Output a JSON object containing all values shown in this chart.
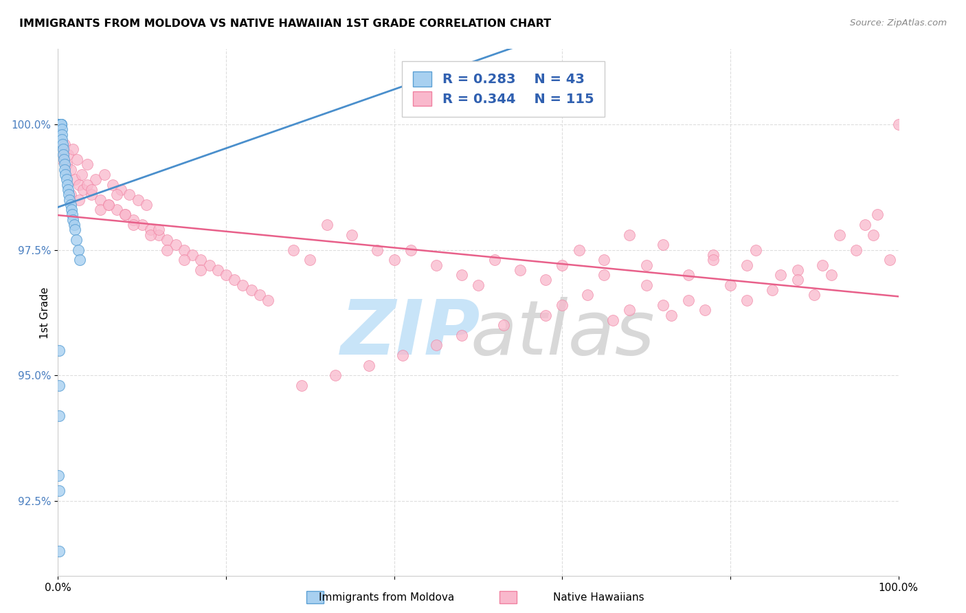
{
  "title": "IMMIGRANTS FROM MOLDOVA VS NATIVE HAWAIIAN 1ST GRADE CORRELATION CHART",
  "source": "Source: ZipAtlas.com",
  "ylabel": "1st Grade",
  "ytick_values": [
    92.5,
    95.0,
    97.5,
    100.0
  ],
  "xlim": [
    0.0,
    100.0
  ],
  "ylim": [
    91.0,
    101.5
  ],
  "legend_blue_label": "Immigrants from Moldova",
  "legend_pink_label": "Native Hawaiians",
  "R_blue": 0.283,
  "N_blue": 43,
  "R_pink": 0.344,
  "N_pink": 115,
  "blue_color": "#a8d0f0",
  "pink_color": "#f9b8cc",
  "blue_edge_color": "#5a9fd4",
  "pink_edge_color": "#f080a0",
  "blue_line_color": "#4a8fcc",
  "pink_line_color": "#e8608a",
  "label_color": "#3060b0",
  "ytick_color": "#4a7fc0",
  "watermark_zip_color": "#c8e4f8",
  "watermark_atlas_color": "#d8d8d8"
}
